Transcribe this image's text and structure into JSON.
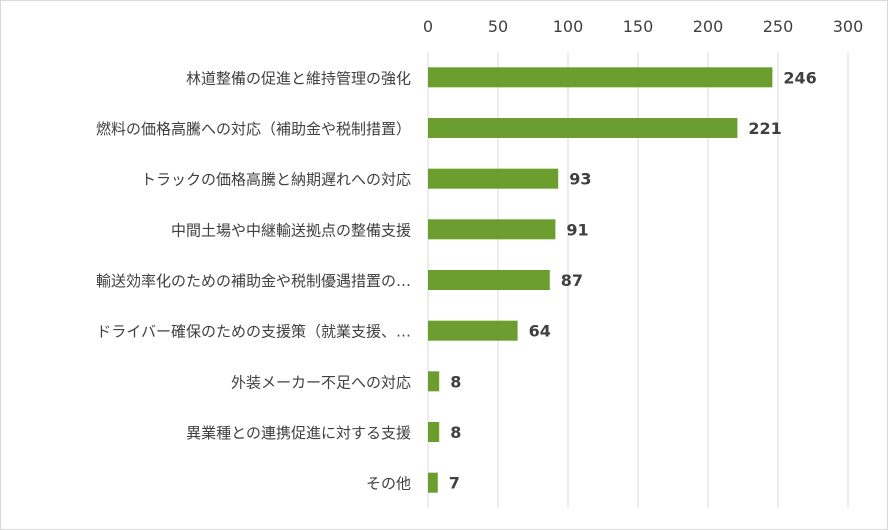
{
  "chart_data": {
    "type": "bar",
    "orientation": "horizontal",
    "categories": [
      "林道整備の促進と維持管理の強化",
      "燃料の価格高騰への対応（補助金や税制措置）",
      "トラックの価格高騰と納期遅れへの対応",
      "中間土場や中継輸送拠点の整備支援",
      "輸送効率化のための補助金や税制優遇措置の…",
      "ドライバー確保のための支援策（就業支援、…",
      "外装メーカー不足への対応",
      "異業種との連携促進に対する支援",
      "その他"
    ],
    "values": [
      246,
      221,
      93,
      91,
      87,
      64,
      8,
      8,
      7
    ],
    "xlim": [
      0,
      300
    ],
    "ticks": [
      0,
      50,
      100,
      150,
      200,
      250,
      300
    ],
    "tick_labels": [
      "0",
      "50",
      "100",
      "150",
      "200",
      "250",
      "300"
    ],
    "axis_position": "top",
    "grid": true,
    "legend": "none",
    "bar_color": "#6b9e2f",
    "gridline_color": "#d9d9d9",
    "title": "",
    "xlabel": "",
    "ylabel": ""
  }
}
